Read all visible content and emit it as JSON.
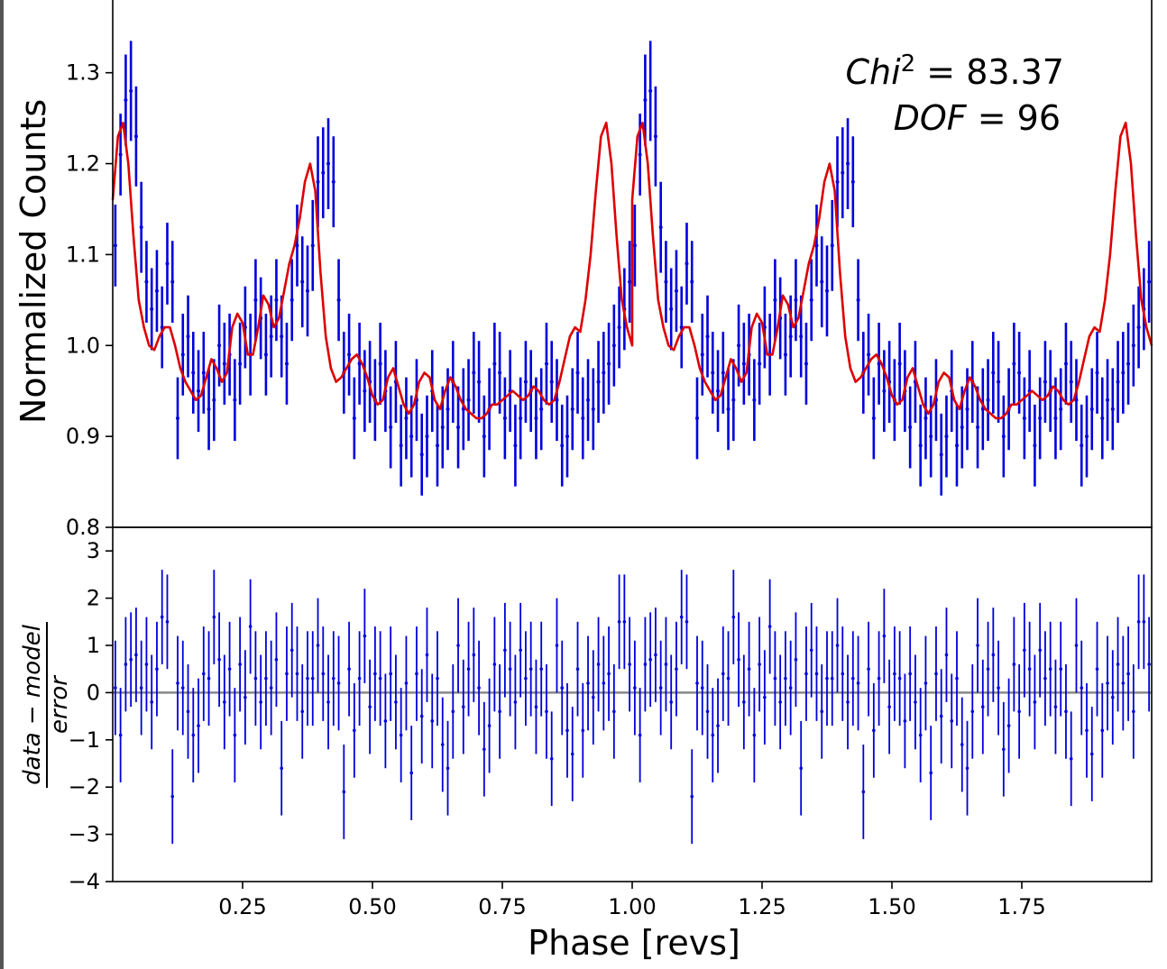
{
  "chart_data": [
    {
      "type": "scatter",
      "panel": "top",
      "ylabel": "Normalized Counts",
      "ylim": [
        0.8,
        1.38
      ],
      "xlim": [
        0.0,
        2.0
      ],
      "yticks": [
        "0.8",
        "0.9",
        "1.0",
        "1.1",
        "1.2",
        "1.3"
      ],
      "annotations": {
        "chi_prefix": "Chi",
        "chi_sup": "2",
        "chi_value": " = 83.37",
        "dof_prefix": "DOF",
        "dof_value": " = 96"
      },
      "series": [
        {
          "kind": "data-with-errorbars",
          "color": "#0000dd",
          "note": "one-period profile (phase 0-1), repeated for phase 1-2",
          "x": [
            0.005,
            0.015,
            0.025,
            0.035,
            0.045,
            0.055,
            0.065,
            0.075,
            0.085,
            0.095,
            0.105,
            0.115,
            0.125,
            0.135,
            0.145,
            0.155,
            0.165,
            0.175,
            0.185,
            0.195,
            0.205,
            0.215,
            0.225,
            0.235,
            0.245,
            0.255,
            0.265,
            0.275,
            0.285,
            0.295,
            0.305,
            0.315,
            0.325,
            0.335,
            0.345,
            0.355,
            0.365,
            0.375,
            0.385,
            0.395,
            0.405,
            0.415,
            0.425,
            0.435,
            0.445,
            0.455,
            0.465,
            0.475,
            0.485,
            0.495,
            0.505,
            0.515,
            0.525,
            0.535,
            0.545,
            0.555,
            0.565,
            0.575,
            0.585,
            0.595,
            0.605,
            0.615,
            0.625,
            0.635,
            0.645,
            0.655,
            0.665,
            0.675,
            0.685,
            0.695,
            0.705,
            0.715,
            0.725,
            0.735,
            0.745,
            0.755,
            0.765,
            0.775,
            0.785,
            0.795,
            0.805,
            0.815,
            0.825,
            0.835,
            0.845,
            0.855,
            0.865,
            0.875,
            0.885,
            0.895,
            0.905,
            0.915,
            0.925,
            0.935,
            0.945,
            0.955,
            0.965,
            0.975,
            0.985,
            0.995
          ],
          "y": [
            1.11,
            1.21,
            1.27,
            1.28,
            1.23,
            1.13,
            1.07,
            1.04,
            1.06,
            1.02,
            1.09,
            1.07,
            0.92,
            0.99,
            1.01,
            0.97,
            0.95,
            0.97,
            0.93,
            0.94,
            1.0,
            0.98,
            0.99,
            0.94,
            0.98,
            1.02,
            0.99,
            1.05,
            1.03,
            0.99,
            1.01,
            1.05,
            1.01,
            0.98,
            1.05,
            1.11,
            1.07,
            1.06,
            1.11,
            1.18,
            1.19,
            1.2,
            1.18,
            1.05,
            0.97,
            0.99,
            0.92,
            0.98,
            0.95,
            0.96,
            0.94,
            0.98,
            0.95,
            0.91,
            0.96,
            0.89,
            0.92,
            0.9,
            0.94,
            0.88,
            0.9,
            0.95,
            0.89,
            0.91,
            0.93,
            0.96,
            0.91,
            0.93,
            0.94,
            0.97,
            0.96,
            0.9,
            0.93,
            0.98,
            0.97,
            0.92,
            0.95,
            0.89,
            0.92,
            0.96,
            0.95,
            0.92,
            0.93,
            0.98,
            0.96,
            0.94,
            0.89,
            0.9,
            0.93,
            0.97,
            0.92,
            0.94,
            0.93,
            0.96,
            0.97,
            0.98,
            1.0,
            1.02,
            1.04,
            1.07
          ],
          "yerr": [
            0.045,
            0.045,
            0.05,
            0.055,
            0.055,
            0.05,
            0.045,
            0.045,
            0.045,
            0.045,
            0.045,
            0.045,
            0.045,
            0.045,
            0.045,
            0.045,
            0.045,
            0.045,
            0.045,
            0.045,
            0.045,
            0.045,
            0.045,
            0.045,
            0.045,
            0.045,
            0.045,
            0.045,
            0.045,
            0.045,
            0.045,
            0.045,
            0.045,
            0.045,
            0.045,
            0.045,
            0.05,
            0.05,
            0.05,
            0.05,
            0.05,
            0.05,
            0.05,
            0.045,
            0.045,
            0.045,
            0.045,
            0.045,
            0.045,
            0.045,
            0.045,
            0.045,
            0.045,
            0.045,
            0.045,
            0.045,
            0.045,
            0.045,
            0.045,
            0.045,
            0.045,
            0.045,
            0.045,
            0.045,
            0.045,
            0.045,
            0.045,
            0.045,
            0.045,
            0.045,
            0.045,
            0.045,
            0.045,
            0.045,
            0.045,
            0.045,
            0.045,
            0.045,
            0.045,
            0.045,
            0.045,
            0.045,
            0.045,
            0.045,
            0.045,
            0.045,
            0.045,
            0.045,
            0.045,
            0.045,
            0.045,
            0.045,
            0.045,
            0.045,
            0.045,
            0.045,
            0.045,
            0.045,
            0.045,
            0.045
          ]
        },
        {
          "kind": "model-line",
          "color": "#dd0000",
          "note": "model curve over phase 0-1, repeated for phase 1-2",
          "x": [
            0.0,
            0.01,
            0.02,
            0.03,
            0.04,
            0.05,
            0.06,
            0.07,
            0.08,
            0.09,
            0.1,
            0.11,
            0.12,
            0.13,
            0.14,
            0.15,
            0.16,
            0.17,
            0.18,
            0.19,
            0.2,
            0.21,
            0.22,
            0.23,
            0.24,
            0.25,
            0.26,
            0.27,
            0.28,
            0.29,
            0.3,
            0.31,
            0.32,
            0.33,
            0.34,
            0.35,
            0.36,
            0.37,
            0.38,
            0.39,
            0.4,
            0.41,
            0.42,
            0.43,
            0.44,
            0.45,
            0.46,
            0.47,
            0.48,
            0.49,
            0.5,
            0.51,
            0.52,
            0.53,
            0.54,
            0.55,
            0.56,
            0.57,
            0.58,
            0.59,
            0.6,
            0.61,
            0.62,
            0.63,
            0.64,
            0.65,
            0.66,
            0.67,
            0.68,
            0.69,
            0.7,
            0.71,
            0.72,
            0.73,
            0.74,
            0.75,
            0.76,
            0.77,
            0.78,
            0.79,
            0.8,
            0.81,
            0.82,
            0.83,
            0.84,
            0.85,
            0.86,
            0.87,
            0.88,
            0.89,
            0.9,
            0.91,
            0.92,
            0.93,
            0.94,
            0.95,
            0.96,
            0.97,
            0.98,
            0.99,
            1.0
          ],
          "y": [
            1.16,
            1.23,
            1.245,
            1.2,
            1.12,
            1.05,
            1.02,
            1.0,
            0.995,
            1.01,
            1.02,
            1.02,
            1.0,
            0.975,
            0.96,
            0.95,
            0.94,
            0.945,
            0.965,
            0.985,
            0.975,
            0.96,
            0.97,
            1.02,
            1.035,
            1.025,
            0.99,
            0.99,
            1.02,
            1.055,
            1.045,
            1.02,
            1.03,
            1.06,
            1.09,
            1.11,
            1.14,
            1.18,
            1.2,
            1.17,
            1.08,
            1.01,
            0.975,
            0.96,
            0.965,
            0.975,
            0.985,
            0.99,
            0.98,
            0.965,
            0.945,
            0.935,
            0.94,
            0.965,
            0.975,
            0.955,
            0.935,
            0.925,
            0.935,
            0.96,
            0.97,
            0.965,
            0.94,
            0.93,
            0.95,
            0.965,
            0.955,
            0.94,
            0.93,
            0.925,
            0.92,
            0.92,
            0.925,
            0.935,
            0.935,
            0.94,
            0.945,
            0.95,
            0.945,
            0.94,
            0.945,
            0.955,
            0.95,
            0.94,
            0.935,
            0.94,
            0.96,
            0.985,
            1.01,
            1.02,
            1.015,
            1.05,
            1.1,
            1.17,
            1.23,
            1.245,
            1.2,
            1.12,
            1.05,
            1.02,
            1.0
          ]
        }
      ]
    },
    {
      "type": "scatter",
      "panel": "bottom",
      "ylabel": "data − model / error",
      "ylabel_num": "data − model",
      "ylabel_den": "error",
      "xlabel": "Phase [revs]",
      "ylim": [
        -4,
        3.5
      ],
      "xlim": [
        0.0,
        2.0
      ],
      "yticks": [
        "−4",
        "−3",
        "−2",
        "−1",
        "0",
        "1",
        "2",
        "3"
      ],
      "xticks": [
        "0.25",
        "0.50",
        "0.75",
        "1.00",
        "1.25",
        "1.50",
        "1.75"
      ],
      "series": [
        {
          "kind": "residuals-with-errorbars",
          "color": "#0000dd",
          "zero_line_color": "#888888",
          "note": "one-period residuals (phase 0-1), repeated for phase 1-2; error bars are ±1",
          "x": [
            0.005,
            0.015,
            0.025,
            0.035,
            0.045,
            0.055,
            0.065,
            0.075,
            0.085,
            0.095,
            0.105,
            0.115,
            0.125,
            0.135,
            0.145,
            0.155,
            0.165,
            0.175,
            0.185,
            0.195,
            0.205,
            0.215,
            0.225,
            0.235,
            0.245,
            0.255,
            0.265,
            0.275,
            0.285,
            0.295,
            0.305,
            0.315,
            0.325,
            0.335,
            0.345,
            0.355,
            0.365,
            0.375,
            0.385,
            0.395,
            0.405,
            0.415,
            0.425,
            0.435,
            0.445,
            0.455,
            0.465,
            0.475,
            0.485,
            0.495,
            0.505,
            0.515,
            0.525,
            0.535,
            0.545,
            0.555,
            0.565,
            0.575,
            0.585,
            0.595,
            0.605,
            0.615,
            0.625,
            0.635,
            0.645,
            0.655,
            0.665,
            0.675,
            0.685,
            0.695,
            0.705,
            0.715,
            0.725,
            0.735,
            0.745,
            0.755,
            0.765,
            0.775,
            0.785,
            0.795,
            0.805,
            0.815,
            0.825,
            0.835,
            0.845,
            0.855,
            0.865,
            0.875,
            0.885,
            0.895,
            0.905,
            0.915,
            0.925,
            0.935,
            0.945,
            0.955,
            0.965,
            0.975,
            0.985,
            0.995
          ],
          "y": [
            0.1,
            -0.9,
            0.6,
            0.7,
            0.8,
            0.1,
            0.6,
            -0.2,
            0.5,
            1.6,
            1.5,
            -2.2,
            0.2,
            0.1,
            -0.4,
            -0.9,
            -0.7,
            0.4,
            0.3,
            1.6,
            0.7,
            -0.2,
            0.5,
            -0.9,
            0.6,
            -0.1,
            1.4,
            0.3,
            -0.2,
            0.3,
            0.1,
            0.7,
            -1.6,
            0.4,
            0.9,
            0.4,
            -0.4,
            0.3,
            0.3,
            1.0,
            0.4,
            -0.2,
            0.3,
            0.2,
            -2.1,
            0.5,
            -0.8,
            0.3,
            1.2,
            -0.3,
            0.4,
            0.3,
            -0.6,
            0.4,
            -0.2,
            -0.9,
            0.2,
            -1.7,
            0.4,
            -0.5,
            0.8,
            -0.6,
            0.3,
            -1.1,
            -1.6,
            -0.4,
            1.0,
            -0.3,
            0.5,
            0.8,
            0.1,
            -1.2,
            -0.7,
            0.6,
            -0.4,
            0.9,
            0.5,
            -0.2,
            0.9,
            0.3,
            0.5,
            -0.3,
            0.5,
            -0.4,
            -1.4,
            1.0,
            0.1,
            -0.8,
            -1.3,
            0.5,
            -0.8,
            0.2,
            -0.1,
            0.6,
            0.2,
            0.4,
            -0.4,
            1.5,
            1.5,
            0.6
          ]
        }
      ]
    }
  ]
}
